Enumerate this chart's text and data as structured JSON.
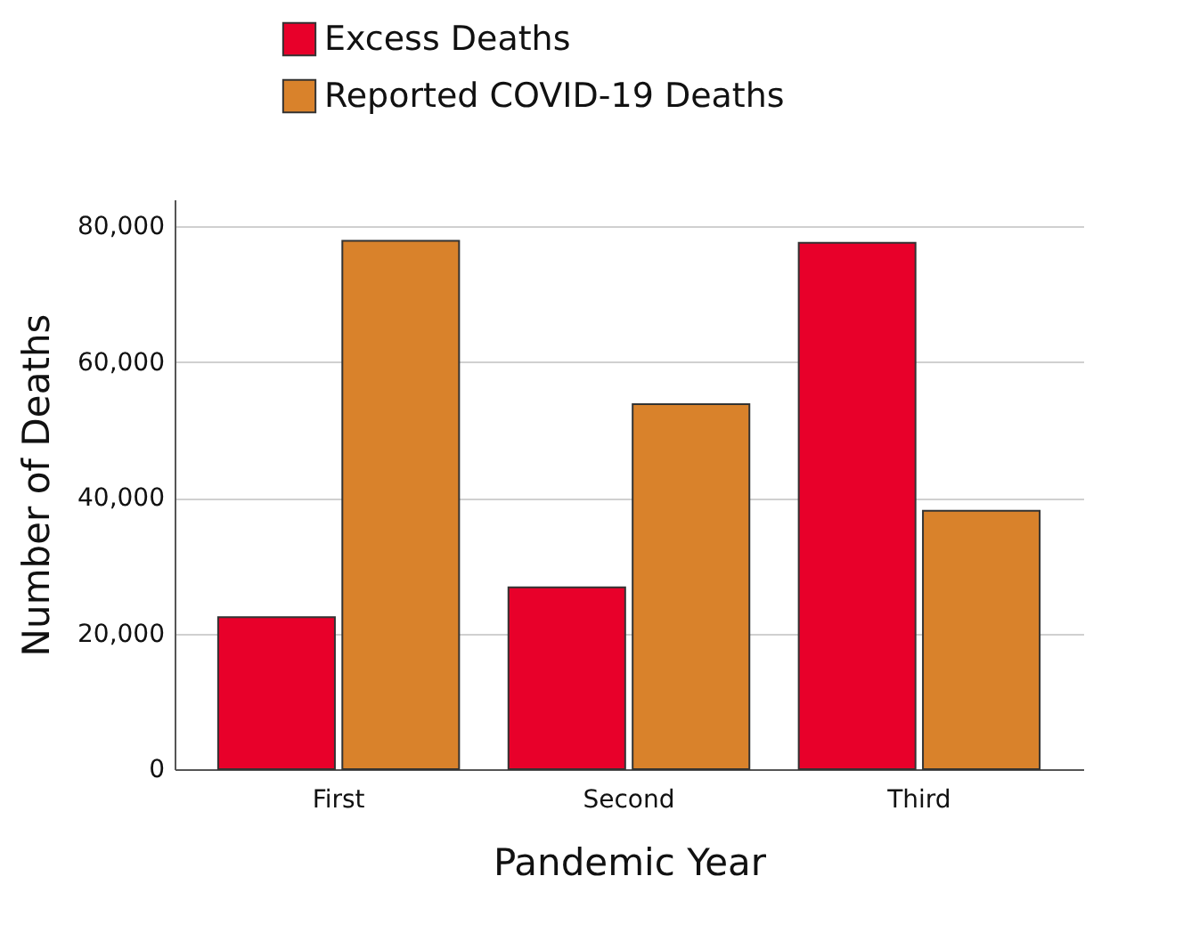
{
  "chart_data": {
    "type": "bar",
    "xlabel": "Pandemic Year",
    "ylabel": "Number of Deaths",
    "categories": [
      "First",
      "Second",
      "Third"
    ],
    "series": [
      {
        "name": "Excess Deaths",
        "color": "#e8002a",
        "values": [
          22400,
          26800,
          77600
        ]
      },
      {
        "name": "Reported COVID-19 Deaths",
        "color": "#d9822b",
        "values": [
          77900,
          53800,
          38100
        ]
      }
    ],
    "ylim": [
      0,
      84000
    ],
    "yticks": [
      0,
      {
        "value": 20000,
        "label": "20,000"
      },
      {
        "value": 40000,
        "label": "40,000"
      },
      {
        "value": 60000,
        "label": "60,000"
      },
      {
        "value": 80000,
        "label": "80,000"
      }
    ],
    "grid": "y",
    "legend": "top left"
  }
}
